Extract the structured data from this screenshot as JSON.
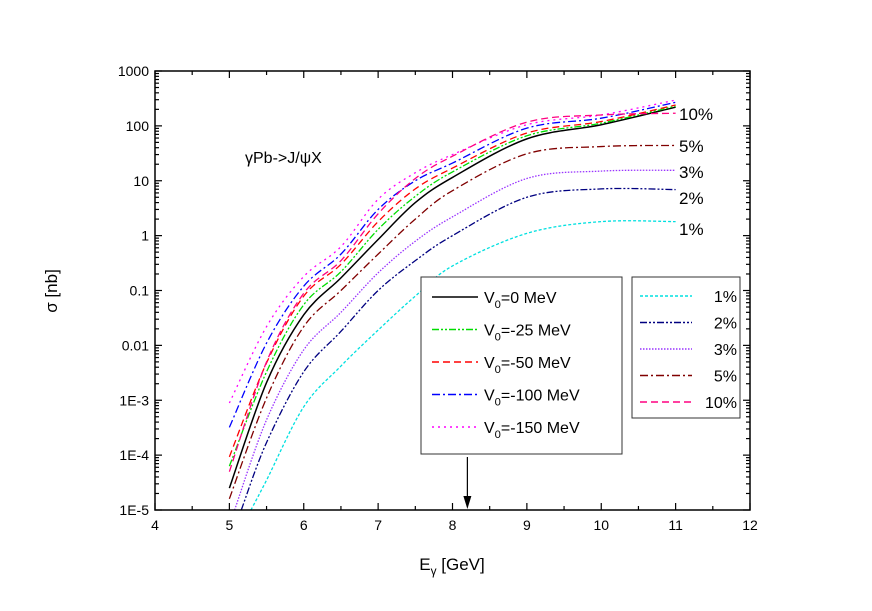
{
  "chart_data": {
    "type": "line",
    "annotation": "γPb->J/ψX",
    "xlabel": "Eγ [GeV]",
    "ylabel": "σ [nb]",
    "xlim": [
      4,
      12
    ],
    "ylim": [
      1e-05,
      1000
    ],
    "yscale": "log",
    "grid": false,
    "x_ticks": [
      "4",
      "5",
      "6",
      "7",
      "8",
      "9",
      "10",
      "11",
      "12"
    ],
    "y_ticks": [
      "1E-5",
      "1E-4",
      "1E-3",
      "0.01",
      "0.1",
      "1",
      "10",
      "100",
      "1000"
    ],
    "arrow_at_x": 8.2,
    "legends": [
      {
        "placement": "center-right",
        "entries": [
          "V0=0 MeV",
          "V0=-25 MeV",
          "V0=-50 MeV",
          "V0=-100 MeV",
          "V0=-150 MeV"
        ]
      },
      {
        "placement": "right",
        "entries": [
          "1%",
          "2%",
          "3%",
          "5%",
          "10%"
        ]
      }
    ],
    "series": [
      {
        "name": "V0=0 MeV",
        "color": "#000000",
        "dash": "solid",
        "x": [
          5,
          5.5,
          6,
          6.5,
          7,
          7.5,
          8,
          9,
          10,
          11
        ],
        "y": [
          2.5e-05,
          0.0021,
          0.036,
          0.17,
          0.85,
          4.0,
          11.5,
          58,
          105,
          219
        ]
      },
      {
        "name": "V0=-25 MeV",
        "color": "#00dd00",
        "dash": "dash-dot-dot",
        "x": [
          5,
          5.5,
          6,
          6.5,
          7,
          7.5,
          8,
          9,
          10,
          11
        ],
        "y": [
          6.3e-05,
          0.0033,
          0.055,
          0.22,
          1.3,
          5.2,
          14.5,
          66,
          112,
          229
        ]
      },
      {
        "name": "V0=-50 MeV",
        "color": "#ff0000",
        "dash": "dash",
        "x": [
          5,
          5.5,
          6,
          6.5,
          7,
          7.5,
          8,
          9,
          10,
          11
        ],
        "y": [
          9.3e-05,
          0.0048,
          0.079,
          0.3,
          1.8,
          7.1,
          17,
          74,
          120,
          240
        ]
      },
      {
        "name": "V0=-100 MeV",
        "color": "#0000ff",
        "dash": "dash-dot",
        "x": [
          5,
          5.5,
          6,
          6.5,
          7,
          7.5,
          8,
          9,
          10,
          11
        ],
        "y": [
          0.00032,
          0.011,
          0.12,
          0.46,
          3.0,
          10,
          21,
          91,
          138,
          269
        ]
      },
      {
        "name": "V0=-150 MeV",
        "color": "#ff00ff",
        "dash": "dot",
        "x": [
          5,
          5.5,
          6,
          6.5,
          7,
          7.5,
          8,
          9,
          10,
          11
        ],
        "y": [
          0.00089,
          0.022,
          0.18,
          0.63,
          4.6,
          14,
          30,
          105,
          158,
          295
        ]
      },
      {
        "name": "1%",
        "color": "#00e0e0",
        "dash": "short-dash",
        "end_label": "1%",
        "x": [
          5.29,
          5.5,
          6,
          6.5,
          7,
          7.5,
          8,
          9,
          10,
          11
        ],
        "y": [
          1e-05,
          3.5e-05,
          0.00076,
          0.0042,
          0.019,
          0.079,
          0.28,
          1.1,
          1.8,
          1.8
        ]
      },
      {
        "name": "2%",
        "color": "#000080",
        "dash": "dash-dot-dot",
        "end_label": "2%",
        "x": [
          5.16,
          5.5,
          6,
          6.5,
          7,
          7.5,
          8,
          9,
          10,
          11
        ],
        "y": [
          1e-05,
          0.00017,
          0.0033,
          0.018,
          0.1,
          0.35,
          1.0,
          5.0,
          7.1,
          6.9
        ]
      },
      {
        "name": "3%",
        "color": "#9933ff",
        "dash": "dense-dot",
        "end_label": "3%",
        "x": [
          5.07,
          5.5,
          6,
          6.5,
          7,
          7.5,
          8,
          9,
          10,
          11
        ],
        "y": [
          1e-05,
          0.00044,
          0.0083,
          0.04,
          0.21,
          0.79,
          2.2,
          11,
          15,
          15.5
        ]
      },
      {
        "name": "5%",
        "color": "#800000",
        "dash": "dash-dot",
        "end_label": "5%",
        "x": [
          5,
          5.5,
          6,
          6.5,
          7,
          7.5,
          8,
          9,
          10,
          11
        ],
        "y": [
          1.6e-05,
          0.0011,
          0.022,
          0.1,
          0.46,
          2.0,
          6.6,
          31,
          42,
          44
        ]
      },
      {
        "name": "10%",
        "color": "#ff0080",
        "dash": "dash",
        "end_label": "10%",
        "x": [
          5,
          5.5,
          6,
          6.5,
          7,
          7.5,
          8,
          9,
          10,
          11
        ],
        "y": [
          5e-05,
          0.005,
          0.089,
          0.35,
          2.5,
          11,
          28,
          117,
          158,
          170
        ]
      }
    ]
  }
}
